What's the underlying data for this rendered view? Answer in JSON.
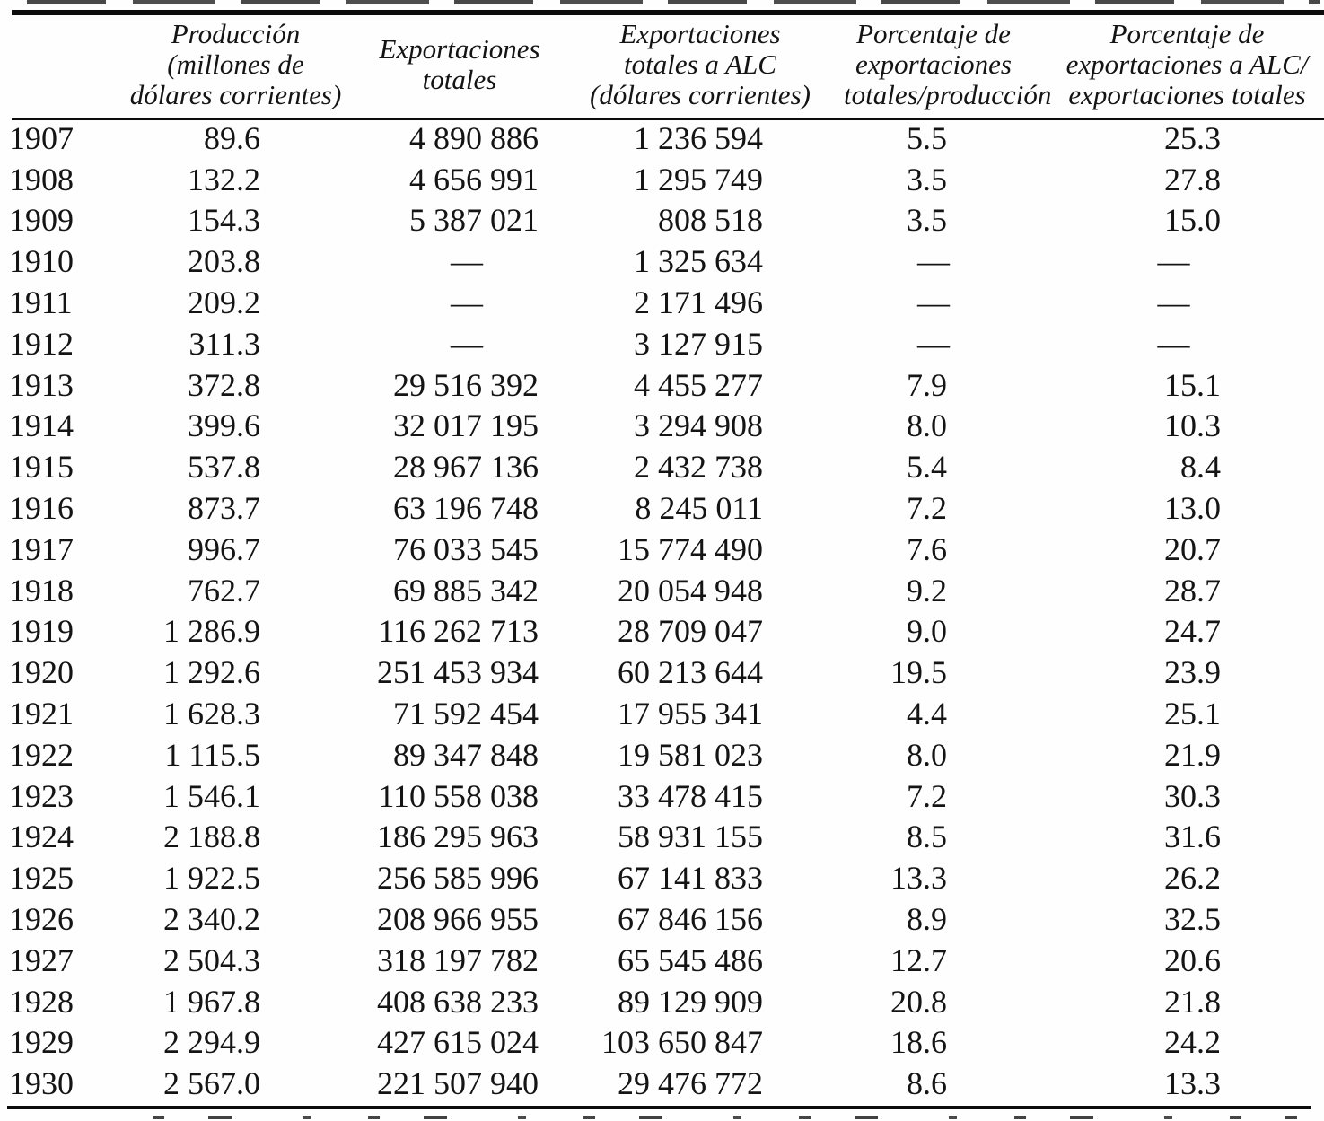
{
  "page": {
    "background_color": "#fefefe",
    "text_color": "#141414",
    "rule_color": "#0c0c0c"
  },
  "table": {
    "missing_marker": "—",
    "headers": [
      {
        "lines": [
          "",
          "",
          ""
        ]
      },
      {
        "lines": [
          "Producción",
          "(millones de",
          "dólares corrientes)"
        ]
      },
      {
        "lines": [
          "Exportaciones",
          "totales"
        ]
      },
      {
        "lines": [
          "Exportaciones",
          "totales a ALC",
          "(dólares corrientes)"
        ]
      },
      {
        "lines": [
          "Porcentaje de",
          "exportaciones",
          "totales/producción"
        ]
      },
      {
        "lines": [
          "Porcentaje de",
          "exportaciones a ALC/",
          "exportaciones totales"
        ]
      }
    ],
    "rows": [
      {
        "cells": [
          "1907",
          "89.6",
          "4 890 886",
          "1 236 594",
          "5.5",
          "25.3"
        ]
      },
      {
        "cells": [
          "1908",
          "132.2",
          "4 656 991",
          "1 295 749",
          "3.5",
          "27.8"
        ]
      },
      {
        "cells": [
          "1909",
          "154.3",
          "5 387 021",
          "808 518",
          "3.5",
          "15.0"
        ]
      },
      {
        "cells": [
          "1910",
          "203.8",
          "—",
          "1 325 634",
          "—",
          "—"
        ]
      },
      {
        "cells": [
          "1911",
          "209.2",
          "—",
          "2 171 496",
          "—",
          "—"
        ]
      },
      {
        "cells": [
          "1912",
          "311.3",
          "—",
          "3 127 915",
          "—",
          "—"
        ]
      },
      {
        "cells": [
          "1913",
          "372.8",
          "29 516 392",
          "4 455 277",
          "7.9",
          "15.1"
        ]
      },
      {
        "cells": [
          "1914",
          "399.6",
          "32 017 195",
          "3 294 908",
          "8.0",
          "10.3"
        ]
      },
      {
        "cells": [
          "1915",
          "537.8",
          "28 967 136",
          "2 432 738",
          "5.4",
          "8.4"
        ]
      },
      {
        "cells": [
          "1916",
          "873.7",
          "63 196 748",
          "8 245 011",
          "7.2",
          "13.0"
        ]
      },
      {
        "cells": [
          "1917",
          "996.7",
          "76 033 545",
          "15 774 490",
          "7.6",
          "20.7"
        ]
      },
      {
        "cells": [
          "1918",
          "762.7",
          "69 885 342",
          "20 054 948",
          "9.2",
          "28.7"
        ]
      },
      {
        "cells": [
          "1919",
          "1 286.9",
          "116 262 713",
          "28 709 047",
          "9.0",
          "24.7"
        ]
      },
      {
        "cells": [
          "1920",
          "1 292.6",
          "251 453 934",
          "60 213 644",
          "19.5",
          "23.9"
        ]
      },
      {
        "cells": [
          "1921",
          "1 628.3",
          "71 592 454",
          "17 955 341",
          "4.4",
          "25.1"
        ]
      },
      {
        "cells": [
          "1922",
          "1 115.5",
          "89 347 848",
          "19 581 023",
          "8.0",
          "21.9"
        ]
      },
      {
        "cells": [
          "1923",
          "1 546.1",
          "110 558 038",
          "33 478 415",
          "7.2",
          "30.3"
        ]
      },
      {
        "cells": [
          "1924",
          "2 188.8",
          "186 295 963",
          "58 931 155",
          "8.5",
          "31.6"
        ]
      },
      {
        "cells": [
          "1925",
          "1 922.5",
          "256 585 996",
          "67 141 833",
          "13.3",
          "26.2"
        ]
      },
      {
        "cells": [
          "1926",
          "2 340.2",
          "208 966 955",
          "67 846 156",
          "8.9",
          "32.5"
        ]
      },
      {
        "cells": [
          "1927",
          "2 504.3",
          "318 197 782",
          "65 545 486",
          "12.7",
          "20.6"
        ]
      },
      {
        "cells": [
          "1928",
          "1 967.8",
          "408 638 233",
          "89 129 909",
          "20.8",
          "21.8"
        ]
      },
      {
        "cells": [
          "1929",
          "2 294.9",
          "427 615 024",
          "103 650 847",
          "18.6",
          "24.2"
        ]
      },
      {
        "cells": [
          "1930",
          "2 567.0",
          "221 507 940",
          "29 476 772",
          "8.6",
          "13.3"
        ]
      }
    ]
  },
  "artifacts": {
    "top_edge": "illegible cropped text fragments above top rule",
    "bottom_edge": "illegible cropped text fragments (note line cut off) below bottom rule"
  }
}
